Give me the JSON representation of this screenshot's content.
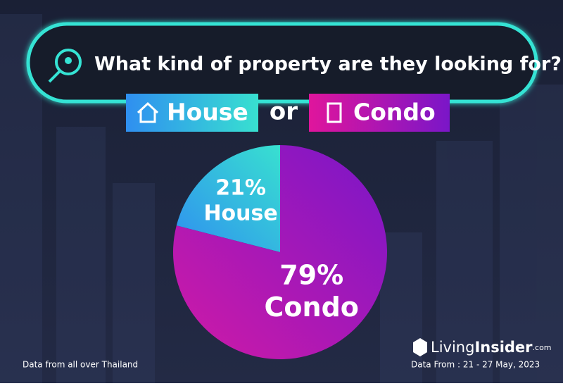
{
  "header": {
    "title": "What kind of property are they looking for?",
    "connector": "or"
  },
  "chart_data": {
    "type": "pie",
    "categories": [
      "House",
      "Condo"
    ],
    "values": [
      21,
      79
    ],
    "value_labels": [
      "21%",
      "79%"
    ],
    "colors": [
      "#2f8ff0",
      "#d01aa6"
    ]
  },
  "footer": {
    "note": "Data from all over Thailand",
    "brand_living": "Living",
    "brand_insider": "Insider",
    "brand_domain": ".com",
    "date": "Data From : 21 - 27  May, 2023"
  }
}
